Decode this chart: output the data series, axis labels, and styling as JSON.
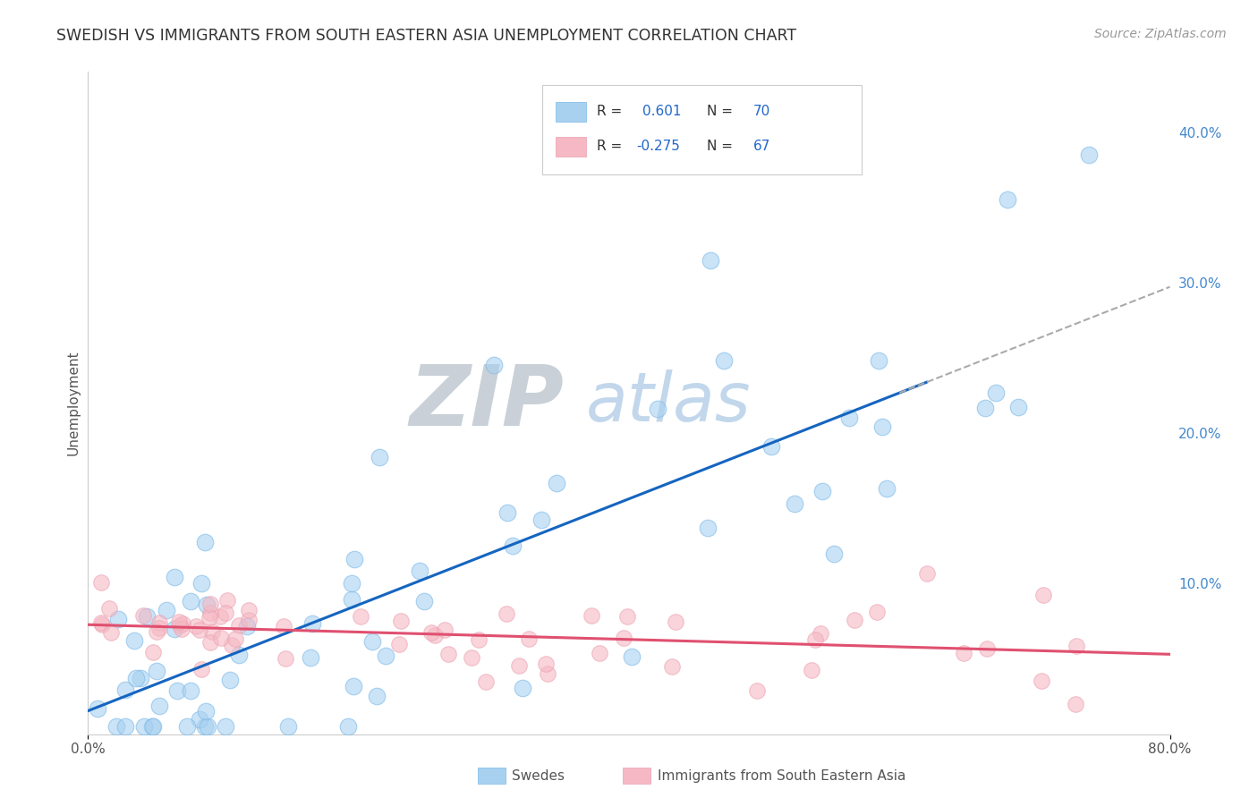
{
  "title": "SWEDISH VS IMMIGRANTS FROM SOUTH EASTERN ASIA UNEMPLOYMENT CORRELATION CHART",
  "source": "Source: ZipAtlas.com",
  "ylabel": "Unemployment",
  "xlim": [
    0.0,
    0.8
  ],
  "ylim": [
    0.0,
    0.44
  ],
  "R_blue": 0.601,
  "N_blue": 70,
  "R_pink": -0.275,
  "N_pink": 67,
  "blue_color": "#a8d1f0",
  "blue_edge_color": "#7ab8e8",
  "pink_color": "#f5b8c4",
  "pink_edge_color": "#eca0b0",
  "blue_line_color": "#1565c0",
  "pink_line_color": "#e05070",
  "dash_color": "#aaaaaa",
  "grid_color": "#cccccc",
  "watermark_zip_color": "#c0c8d0",
  "watermark_atlas_color": "#b8d0e8",
  "title_color": "#333333",
  "source_color": "#999999",
  "axis_label_color": "#555555",
  "tick_color": "#555555",
  "right_tick_color": "#4488cc",
  "legend_text_color": "#333333",
  "legend_value_color": "#2266cc",
  "bottom_legend_color": "#555555"
}
